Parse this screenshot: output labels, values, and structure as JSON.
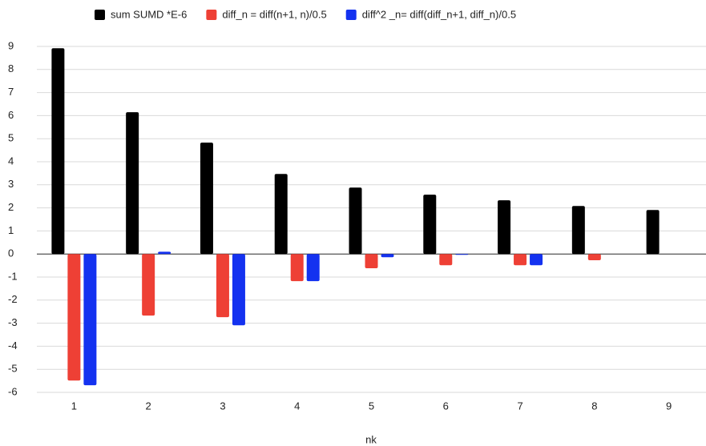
{
  "chart_data": {
    "type": "bar",
    "x_label": "nk",
    "categories": [
      "1",
      "2",
      "3",
      "4",
      "5",
      "6",
      "7",
      "8",
      "9"
    ],
    "series": [
      {
        "name": "sum SUMD *E-6",
        "color": "#000000",
        "values": [
          8.92,
          6.15,
          4.83,
          3.47,
          2.88,
          2.57,
          2.33,
          2.08,
          1.91
        ]
      },
      {
        "name": "diff_n  = diff(n+1, n)/0.5",
        "color": "#ee4035",
        "values": [
          -5.49,
          -2.67,
          -2.74,
          -1.18,
          -0.62,
          -0.49,
          -0.49,
          -0.27,
          null
        ]
      },
      {
        "name": "diff^2 _n= diff(diff_n+1, diff_n)/0.5",
        "color": "#1432f0",
        "values": [
          -5.69,
          0.1,
          -3.09,
          -1.18,
          -0.14,
          -0.03,
          -0.49,
          null,
          null
        ]
      }
    ],
    "ylim": [
      -6,
      9
    ],
    "yticks": [
      -6,
      -5,
      -4,
      -3,
      -2,
      -1,
      0,
      1,
      2,
      3,
      4,
      5,
      6,
      7,
      8,
      9
    ],
    "grid": true,
    "legend": "top"
  }
}
